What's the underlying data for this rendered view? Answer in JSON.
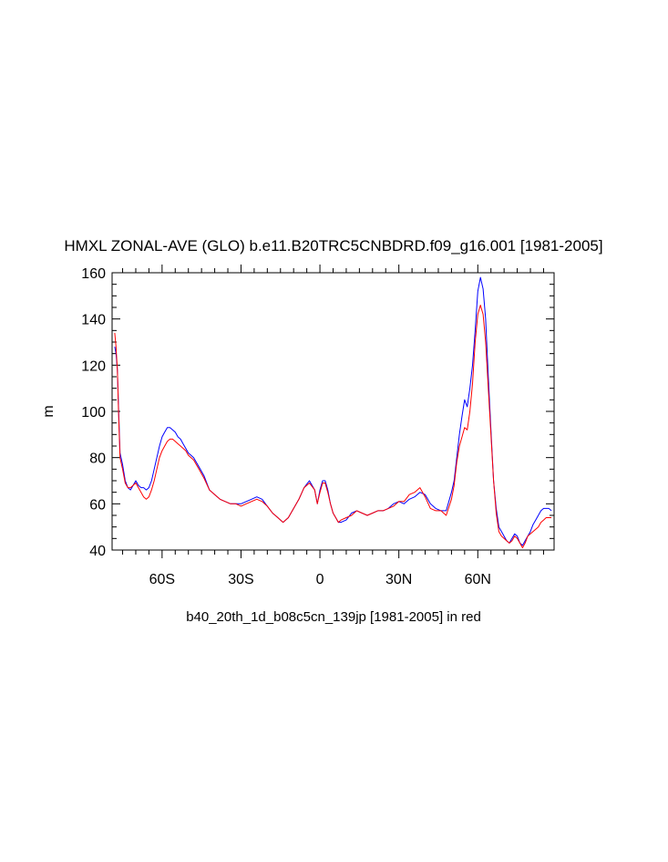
{
  "chart_data": {
    "type": "line",
    "title": "HMXL ZONAL-AVE (GLO) b.e11.B20TRC5CNBDRD.f09_g16.001 [1981-2005]",
    "xlabel": "b40_20th_1d_b08c5cn_139jp [1981-2005] in red",
    "ylabel": "m",
    "xlim": [
      -79,
      89
    ],
    "ylim": [
      40,
      160
    ],
    "x_ticks": [
      {
        "value": -60,
        "label": "60S"
      },
      {
        "value": -30,
        "label": "30S"
      },
      {
        "value": 0,
        "label": "0"
      },
      {
        "value": 30,
        "label": "30N"
      },
      {
        "value": 60,
        "label": "60N"
      }
    ],
    "y_ticks": [
      40,
      60,
      80,
      100,
      120,
      140,
      160
    ],
    "grid": false,
    "series": [
      {
        "color": "#0000ff",
        "x": [
          -78,
          -77.5,
          -77,
          -76.5,
          -76,
          -75,
          -74,
          -73,
          -72,
          -70,
          -69,
          -68,
          -67,
          -66,
          -65,
          -64,
          -63,
          -62,
          -61,
          -60,
          -59,
          -58,
          -57,
          -56,
          -55,
          -54,
          -53,
          -52,
          -51,
          -50,
          -49,
          -48,
          -47,
          -46,
          -44,
          -42,
          -40,
          -38,
          -36,
          -34,
          -32,
          -30,
          -28,
          -26,
          -24,
          -22,
          -20,
          -18,
          -16,
          -14,
          -12,
          -10,
          -8,
          -6,
          -4,
          -2,
          -1,
          0,
          1,
          2,
          3,
          4,
          5,
          6,
          7,
          8,
          10,
          12,
          14,
          16,
          18,
          20,
          22,
          24,
          26,
          28,
          30,
          32,
          34,
          36,
          38,
          40,
          42,
          44,
          46,
          48,
          50,
          51,
          52,
          53,
          54,
          55,
          56,
          57,
          58,
          59,
          60,
          61,
          62,
          63,
          64,
          65,
          66,
          67,
          68,
          69,
          70,
          71,
          72,
          73,
          74,
          75,
          76,
          77,
          78,
          79,
          80,
          81,
          82,
          83,
          84,
          85,
          86,
          87,
          88
        ],
        "y": [
          128,
          125,
          118,
          100,
          82,
          77,
          70,
          67,
          66,
          70,
          68,
          67,
          67,
          66,
          67,
          70,
          75,
          80,
          85,
          89,
          91,
          93,
          93,
          92,
          91,
          89,
          88,
          86,
          84,
          82,
          81,
          80,
          78,
          76,
          72,
          66,
          64,
          62,
          61,
          60,
          60,
          60,
          61,
          62,
          63,
          62,
          59,
          56,
          54,
          52,
          54,
          58,
          62,
          67,
          70,
          66,
          60,
          66,
          70,
          70,
          66,
          60,
          56,
          54,
          52,
          52,
          53,
          56,
          57,
          56,
          55,
          56,
          57,
          57,
          58,
          60,
          61,
          60,
          62,
          63,
          65,
          64,
          60,
          58,
          57,
          57,
          65,
          70,
          80,
          90,
          98,
          105,
          102,
          110,
          120,
          135,
          152,
          158,
          153,
          140,
          115,
          92,
          70,
          58,
          50,
          48,
          46,
          44,
          43,
          45,
          47,
          46,
          43,
          42,
          44,
          46,
          48,
          51,
          53,
          55,
          57,
          58,
          58,
          58,
          57
        ],
        "name": ""
      },
      {
        "color": "#ff0000",
        "x": [
          -78,
          -77.5,
          -77,
          -76.5,
          -76,
          -75,
          -74,
          -73,
          -72,
          -70,
          -69,
          -68,
          -67,
          -66,
          -65,
          -64,
          -63,
          -62,
          -61,
          -60,
          -59,
          -58,
          -57,
          -56,
          -55,
          -54,
          -53,
          -52,
          -51,
          -50,
          -49,
          -48,
          -47,
          -46,
          -44,
          -42,
          -40,
          -38,
          -36,
          -34,
          -32,
          -30,
          -28,
          -26,
          -24,
          -22,
          -20,
          -18,
          -16,
          -14,
          -12,
          -10,
          -8,
          -6,
          -4,
          -2,
          -1,
          0,
          1,
          2,
          3,
          4,
          5,
          6,
          7,
          8,
          10,
          12,
          14,
          16,
          18,
          20,
          22,
          24,
          26,
          28,
          30,
          32,
          34,
          36,
          38,
          40,
          42,
          44,
          46,
          48,
          50,
          51,
          52,
          53,
          54,
          55,
          56,
          57,
          58,
          59,
          60,
          61,
          62,
          63,
          64,
          65,
          66,
          67,
          68,
          69,
          70,
          71,
          72,
          73,
          74,
          75,
          76,
          77,
          78,
          79,
          80,
          81,
          82,
          83,
          84,
          85,
          86,
          87,
          88
        ],
        "y": [
          134,
          128,
          118,
          98,
          80,
          75,
          69,
          67,
          67,
          69,
          67,
          65,
          63,
          62,
          63,
          66,
          70,
          75,
          80,
          83,
          85,
          87,
          88,
          88,
          87,
          86,
          85,
          84,
          83,
          81,
          80,
          79,
          77,
          75,
          71,
          66,
          64,
          62,
          61,
          60,
          60,
          59,
          60,
          61,
          62,
          61,
          59,
          56,
          54,
          52,
          54,
          58,
          62,
          67,
          69,
          66,
          60,
          65,
          69,
          69,
          65,
          60,
          56,
          54,
          52,
          53,
          54,
          55,
          57,
          56,
          55,
          56,
          57,
          57,
          58,
          59,
          61,
          61,
          64,
          65,
          67,
          63,
          58,
          57,
          57,
          55,
          62,
          68,
          78,
          85,
          89,
          93,
          92,
          100,
          112,
          130,
          142,
          146,
          142,
          130,
          110,
          90,
          70,
          56,
          48,
          46,
          45,
          44,
          43,
          44,
          46,
          45,
          43,
          41,
          43,
          46,
          47,
          48,
          49,
          50,
          52,
          53,
          54,
          54,
          54
        ],
        "name": ""
      }
    ]
  }
}
